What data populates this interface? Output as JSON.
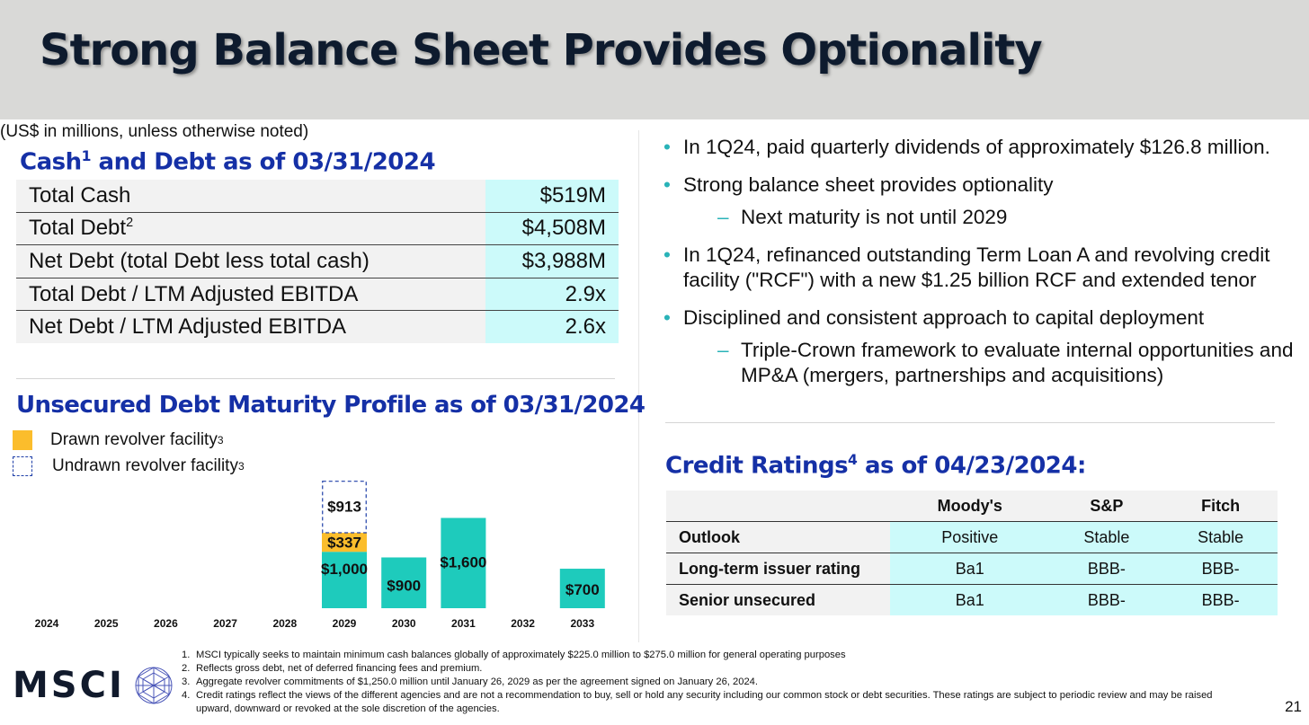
{
  "title": "Strong Balance Sheet Provides Optionality",
  "note": "(US$ in millions, unless otherwise noted)",
  "cash_section": {
    "title": "Cash",
    "title_sup": "1",
    "title_rest": " and Debt as of 03/31/2024",
    "rows": [
      {
        "label": "Total Cash",
        "sup": "",
        "value": "$519M"
      },
      {
        "label": "Total Debt",
        "sup": "2",
        "value": "$4,508M"
      },
      {
        "label": "Net Debt (total Debt less total cash)",
        "sup": "",
        "value": "$3,988M"
      },
      {
        "label": "Total Debt / LTM Adjusted EBITDA",
        "sup": "",
        "value": "2.9x"
      },
      {
        "label": "Net Debt / LTM Adjusted EBITDA",
        "sup": "",
        "value": "2.6x"
      }
    ]
  },
  "maturity_section": {
    "title": "Unsecured Debt Maturity Profile as of 03/31/2024",
    "legend": [
      {
        "label": "Drawn revolver facility",
        "sup": "3"
      },
      {
        "label": "Undrawn revolver facility",
        "sup": "3"
      }
    ]
  },
  "chart_data": {
    "type": "bar",
    "stacked": true,
    "categories": [
      "2024",
      "2025",
      "2026",
      "2027",
      "2028",
      "2029",
      "2030",
      "2031",
      "2032",
      "2033"
    ],
    "series": [
      {
        "name": "",
        "values": [
          0,
          0,
          0,
          0,
          0,
          1000,
          900,
          1600,
          0,
          700
        ],
        "color": "#1ecbbc"
      },
      {
        "name": "Drawn revolver facility",
        "values": [
          0,
          0,
          0,
          0,
          0,
          337,
          0,
          0,
          0,
          0
        ],
        "color": "#fbbd2c"
      },
      {
        "name": "Undrawn revolver facility",
        "values": [
          0,
          0,
          0,
          0,
          0,
          913,
          0,
          0,
          0,
          0
        ],
        "color": "none"
      }
    ],
    "data_labels": [
      "$1,000",
      "$337",
      "$913",
      "$900",
      "$1,600",
      "$700"
    ],
    "grid": false
  },
  "bullets": [
    {
      "text": "In 1Q24, paid quarterly dividends of approximately $126.8 million.",
      "subs": []
    },
    {
      "text": "Strong balance sheet provides optionality",
      "subs": [
        "Next maturity is not until 2029"
      ]
    },
    {
      "text": "In 1Q24, refinanced outstanding Term Loan A and revolving credit facility (\"RCF\") with a new $1.25 billion RCF and extended tenor",
      "subs": []
    },
    {
      "text": "Disciplined and consistent approach to capital deployment",
      "subs": [
        "Triple-Crown framework to evaluate internal opportunities and MP&A (mergers, partnerships and acquisitions)"
      ]
    }
  ],
  "bullet_glyph": "•",
  "sub_glyph": "–",
  "ratings_section": {
    "title": "Credit Ratings",
    "title_sup": "4",
    "title_rest": " as of 04/23/2024:",
    "columns": [
      "Moody's",
      "S&P",
      "Fitch"
    ],
    "rows": [
      {
        "label": "Outlook",
        "values": [
          "Positive",
          "Stable",
          "Stable"
        ]
      },
      {
        "label": "Long-term issuer rating",
        "values": [
          "Ba1",
          "BBB-",
          "BBB-"
        ]
      },
      {
        "label": "Senior unsecured",
        "values": [
          "Ba1",
          "BBB-",
          "BBB-"
        ]
      }
    ]
  },
  "footnotes": [
    {
      "n": "1.",
      "text": "MSCI typically seeks to maintain minimum cash balances globally of approximately $225.0 million to $275.0 million for general operating purposes"
    },
    {
      "n": "2.",
      "text": "Reflects gross debt, net of deferred financing fees and premium."
    },
    {
      "n": "3.",
      "text": "Aggregate revolver commitments of $1,250.0 million until January 26, 2029 as per the agreement signed on January 26, 2024."
    },
    {
      "n": "4.",
      "text": "Credit ratings reflect the views of the different agencies and are not a recommendation to buy, sell or hold any security including our common stock or debt securities. These ratings are subject to periodic review and may be raised upward, downward or revoked at the sole discretion of the agencies."
    }
  ],
  "logo_text": "MSCI",
  "page_number": "21",
  "colors": {
    "teal": "#1ecbbc",
    "drawn": "#fbbd2c",
    "undrawn_border": "#1f3fa8",
    "title_blue": "#1530a6",
    "bullet": "#2ab3b8"
  }
}
